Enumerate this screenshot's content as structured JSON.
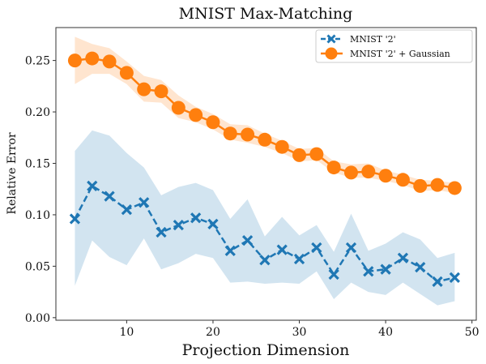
{
  "chart_data": {
    "type": "line",
    "title": "MNIST Max-Matching",
    "xlabel": "Projection Dimension",
    "ylabel": "Relative Error",
    "xlim": [
      1.8,
      50.5
    ],
    "ylim": [
      -0.0025,
      0.282
    ],
    "xticks": [
      10,
      20,
      30,
      40,
      50
    ],
    "xtick_labels": [
      "10",
      "20",
      "30",
      "40",
      "50"
    ],
    "yticks": [
      0.0,
      0.05,
      0.1,
      0.15,
      0.2,
      0.25
    ],
    "ytick_labels": [
      "0.00",
      "0.05",
      "0.10",
      "0.15",
      "0.20",
      "0.25"
    ],
    "grid": false,
    "legend_position": "top-right",
    "x": [
      4,
      6,
      8,
      10,
      12,
      14,
      16,
      18,
      20,
      22,
      24,
      26,
      28,
      30,
      32,
      34,
      36,
      38,
      40,
      42,
      44,
      46,
      48
    ],
    "series": [
      {
        "name": "MNIST '2'",
        "color": "#1f77b4",
        "marker": "x",
        "linestyle": "dashed",
        "values": [
          0.096,
          0.128,
          0.118,
          0.105,
          0.112,
          0.083,
          0.09,
          0.097,
          0.091,
          0.065,
          0.075,
          0.056,
          0.066,
          0.057,
          0.068,
          0.042,
          0.068,
          0.045,
          0.047,
          0.058,
          0.049,
          0.035,
          0.039
        ],
        "band_upper": [
          0.162,
          0.182,
          0.177,
          0.16,
          0.146,
          0.119,
          0.127,
          0.131,
          0.124,
          0.096,
          0.115,
          0.079,
          0.098,
          0.08,
          0.09,
          0.064,
          0.101,
          0.065,
          0.072,
          0.083,
          0.076,
          0.058,
          0.063
        ],
        "band_lower": [
          0.031,
          0.075,
          0.059,
          0.051,
          0.077,
          0.047,
          0.053,
          0.062,
          0.058,
          0.034,
          0.035,
          0.033,
          0.034,
          0.033,
          0.045,
          0.018,
          0.034,
          0.025,
          0.022,
          0.034,
          0.023,
          0.012,
          0.016
        ]
      },
      {
        "name": "MNIST '2' + Gaussian",
        "color": "#ff7f0e",
        "marker": "o",
        "linestyle": "solid",
        "values": [
          0.25,
          0.252,
          0.249,
          0.238,
          0.222,
          0.22,
          0.204,
          0.197,
          0.19,
          0.179,
          0.178,
          0.173,
          0.166,
          0.158,
          0.159,
          0.146,
          0.141,
          0.142,
          0.138,
          0.134,
          0.128,
          0.129,
          0.126
        ],
        "band_upper": [
          0.273,
          0.266,
          0.262,
          0.249,
          0.235,
          0.231,
          0.216,
          0.205,
          0.198,
          0.188,
          0.187,
          0.179,
          0.172,
          0.164,
          0.165,
          0.152,
          0.149,
          0.15,
          0.143,
          0.139,
          0.134,
          0.133,
          0.131
        ],
        "band_lower": [
          0.227,
          0.237,
          0.237,
          0.227,
          0.21,
          0.209,
          0.194,
          0.19,
          0.183,
          0.173,
          0.17,
          0.166,
          0.16,
          0.152,
          0.153,
          0.141,
          0.136,
          0.136,
          0.133,
          0.129,
          0.123,
          0.124,
          0.121
        ]
      }
    ]
  }
}
